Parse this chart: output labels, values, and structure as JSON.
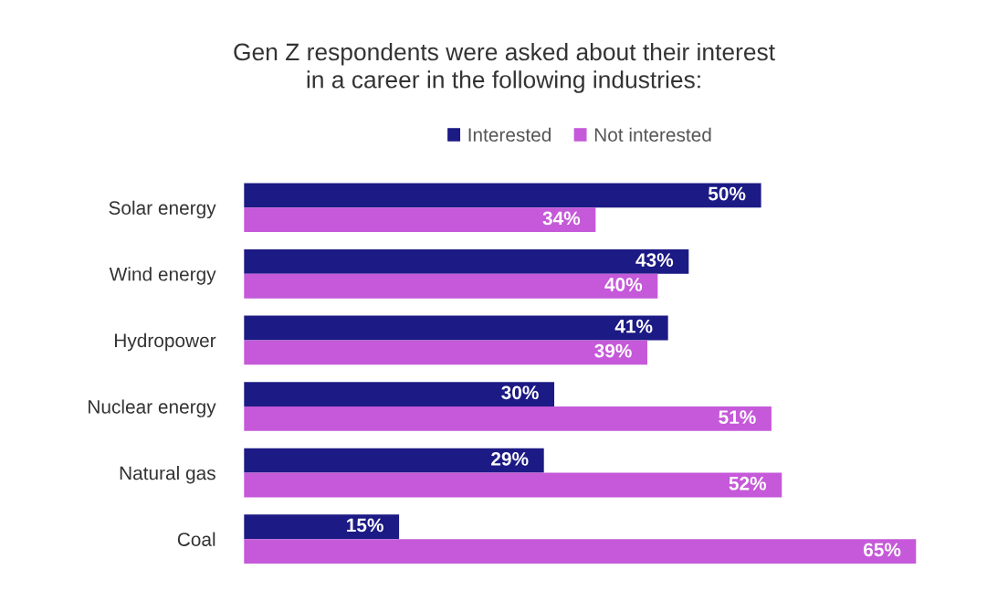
{
  "chart_data": {
    "type": "bar",
    "orientation": "horizontal",
    "title": "Gen Z respondents were asked about their interest\nin a career in the following industries:",
    "categories": [
      "Solar energy",
      "Wind energy",
      "Hydropower",
      "Nuclear energy",
      "Natural gas",
      "Coal"
    ],
    "series": [
      {
        "name": "Interested",
        "color": "#1c1a84",
        "values": [
          50,
          43,
          41,
          30,
          29,
          15
        ],
        "value_labels": [
          "50%",
          "43%",
          "41%",
          "30%",
          "29%",
          "15%"
        ]
      },
      {
        "name": "Not interested",
        "color": "#c559d9",
        "values": [
          34,
          40,
          39,
          51,
          52,
          65
        ],
        "value_labels": [
          "34%",
          "40%",
          "39%",
          "51%",
          "52%",
          "65%"
        ]
      }
    ],
    "legend": "top",
    "grid": false,
    "tick_labels": "y"
  }
}
